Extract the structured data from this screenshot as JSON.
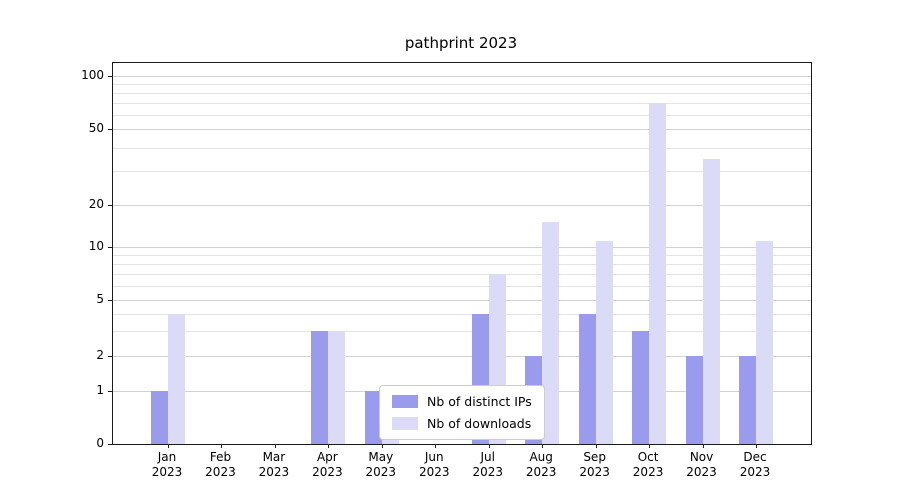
{
  "chart_data": {
    "type": "bar",
    "title": "pathprint 2023",
    "categories": [
      "Jan 2023",
      "Feb 2023",
      "Mar 2023",
      "Apr 2023",
      "May 2023",
      "Jun 2023",
      "Jul 2023",
      "Aug 2023",
      "Sep 2023",
      "Oct 2023",
      "Nov 2023",
      "Dec 2023"
    ],
    "series": [
      {
        "name": "Nb of distinct IPs",
        "color": "#9b9bee",
        "values": [
          1,
          0,
          0,
          3,
          1,
          0,
          4,
          2,
          4,
          3,
          2,
          2
        ]
      },
      {
        "name": "Nb of downloads",
        "color": "#dbdbf7",
        "values": [
          4,
          0,
          0,
          3,
          1,
          0,
          7,
          15,
          11,
          70,
          35,
          11
        ]
      }
    ],
    "yscale": "symlog",
    "yticks": [
      0,
      1,
      2,
      5,
      10,
      20,
      50,
      100
    ],
    "minor_gridlines": [
      3,
      4,
      6,
      7,
      8,
      9,
      30,
      40,
      60,
      70,
      80,
      90
    ],
    "ylim": [
      0,
      110
    ],
    "grid": true,
    "legend_position": "lower center"
  },
  "colors": {
    "bar_distinct_ips": "#9b9bee",
    "bar_downloads": "#dbdbf7",
    "gridline": "#d9d9d9",
    "axis": "#1a1a1a",
    "text": "#000000"
  }
}
